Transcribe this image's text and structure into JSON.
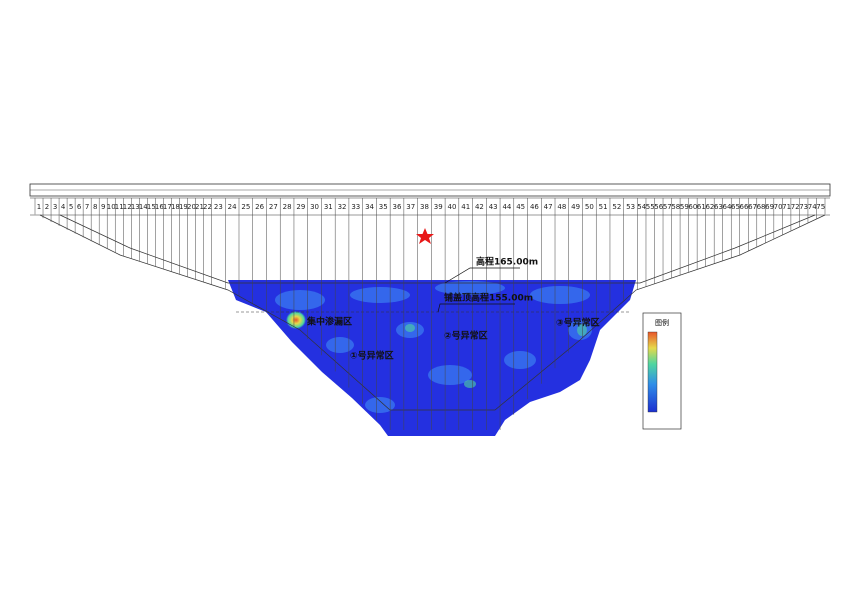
{
  "diagram": {
    "sections": [
      "1",
      "2",
      "3",
      "4",
      "5",
      "6",
      "7",
      "8",
      "9",
      "10",
      "11",
      "12",
      "13",
      "14",
      "15",
      "16",
      "17",
      "18",
      "19",
      "20",
      "21",
      "22",
      "23",
      "24",
      "25",
      "26",
      "27",
      "28",
      "29",
      "30",
      "31",
      "32",
      "33",
      "34",
      "35",
      "36",
      "37",
      "38",
      "39",
      "40",
      "41",
      "42",
      "43",
      "44",
      "45",
      "46",
      "47",
      "48",
      "49",
      "50",
      "51",
      "52",
      "53",
      "54",
      "55",
      "56",
      "57",
      "58",
      "59",
      "60",
      "61",
      "62",
      "63",
      "64",
      "65",
      "66",
      "67",
      "68",
      "69",
      "70",
      "71",
      "72",
      "73",
      "74",
      "75"
    ],
    "labels": {
      "elevation": "高程165.00m",
      "blanket_top": "铺盖顶高程155.00m",
      "leak_zone": "集中渗漏区",
      "anomaly_1": "①号异常区",
      "anomaly_2": "②号异常区",
      "anomaly_3": "③号异常区"
    },
    "legend": {
      "title": "图例"
    }
  }
}
